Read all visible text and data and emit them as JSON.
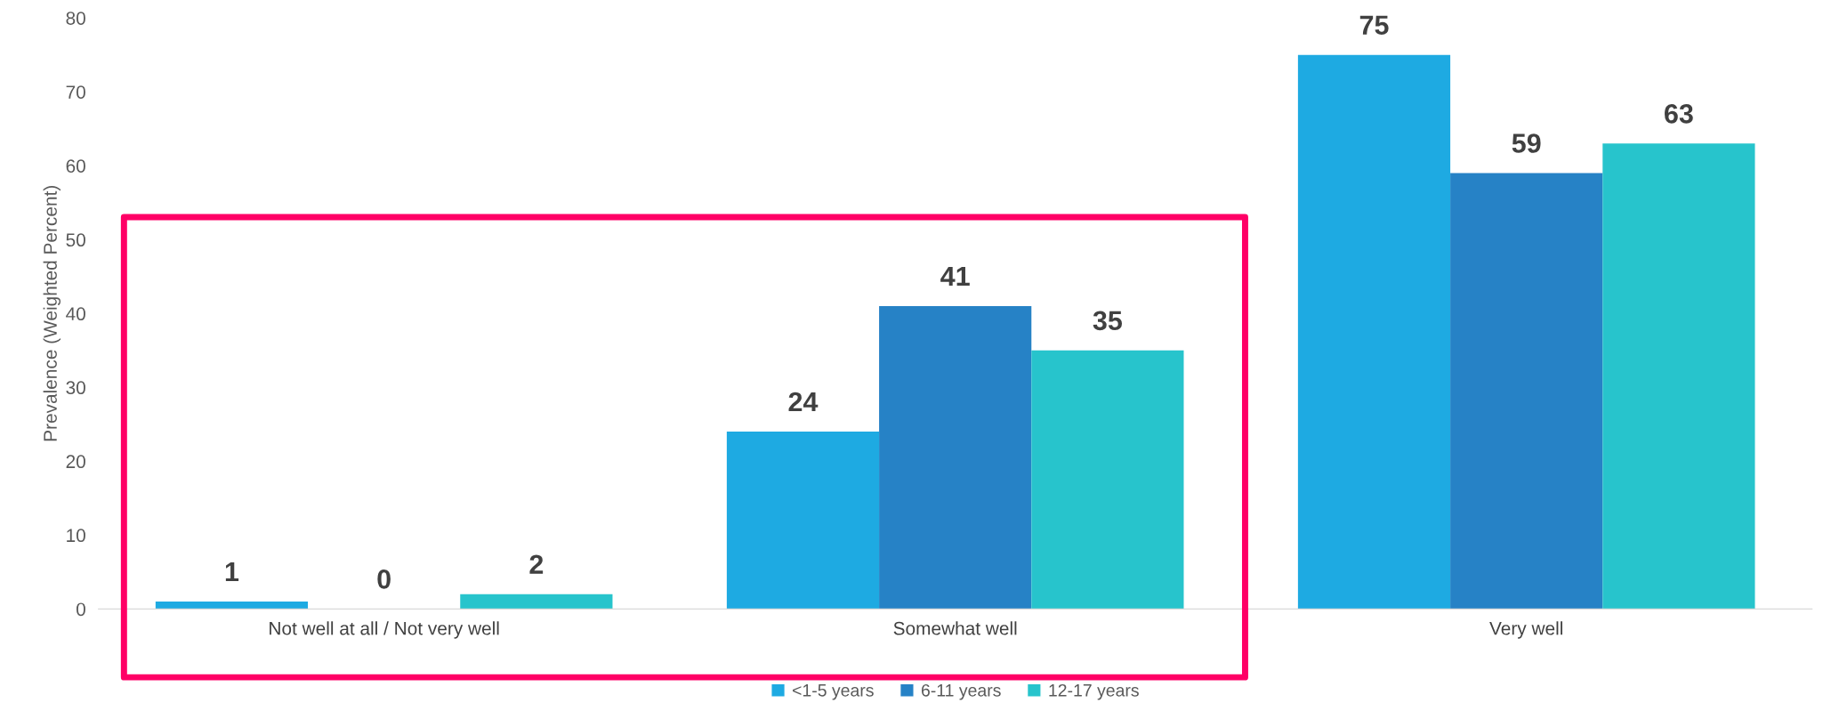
{
  "chart_data": {
    "type": "bar",
    "ylabel": "Prevalence (Weighted Percent)",
    "categories": [
      "Not well at all / Not very well",
      "Somewhat well",
      "Very well"
    ],
    "series": [
      {
        "name": "<1-5 years",
        "color": "#1eaae2",
        "values": [
          1,
          24,
          75
        ]
      },
      {
        "name": "6-11 years",
        "color": "#2682c6",
        "values": [
          0,
          41,
          59
        ]
      },
      {
        "name": "12-17 years",
        "color": "#27c4cc",
        "values": [
          2,
          35,
          63
        ]
      }
    ],
    "ylim": [
      0,
      80
    ],
    "yticks": [
      0,
      10,
      20,
      30,
      40,
      50,
      60,
      70,
      80
    ],
    "data_labels": true,
    "legend": "bottom",
    "grid": false
  }
}
